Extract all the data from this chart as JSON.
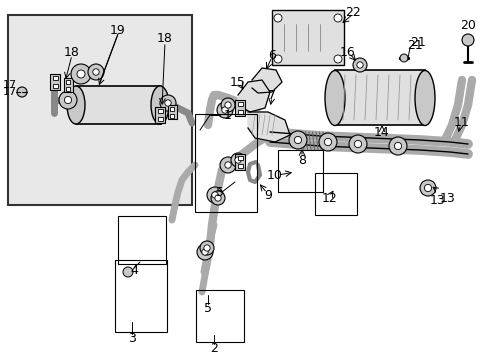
{
  "bg_color": "#ffffff",
  "line_color": "#000000",
  "gray_fill": "#c8c8c8",
  "light_gray": "#e0e0e0",
  "inset_bg": "#e8e8e8",
  "figsize": [
    4.89,
    3.6
  ],
  "dpi": 100
}
